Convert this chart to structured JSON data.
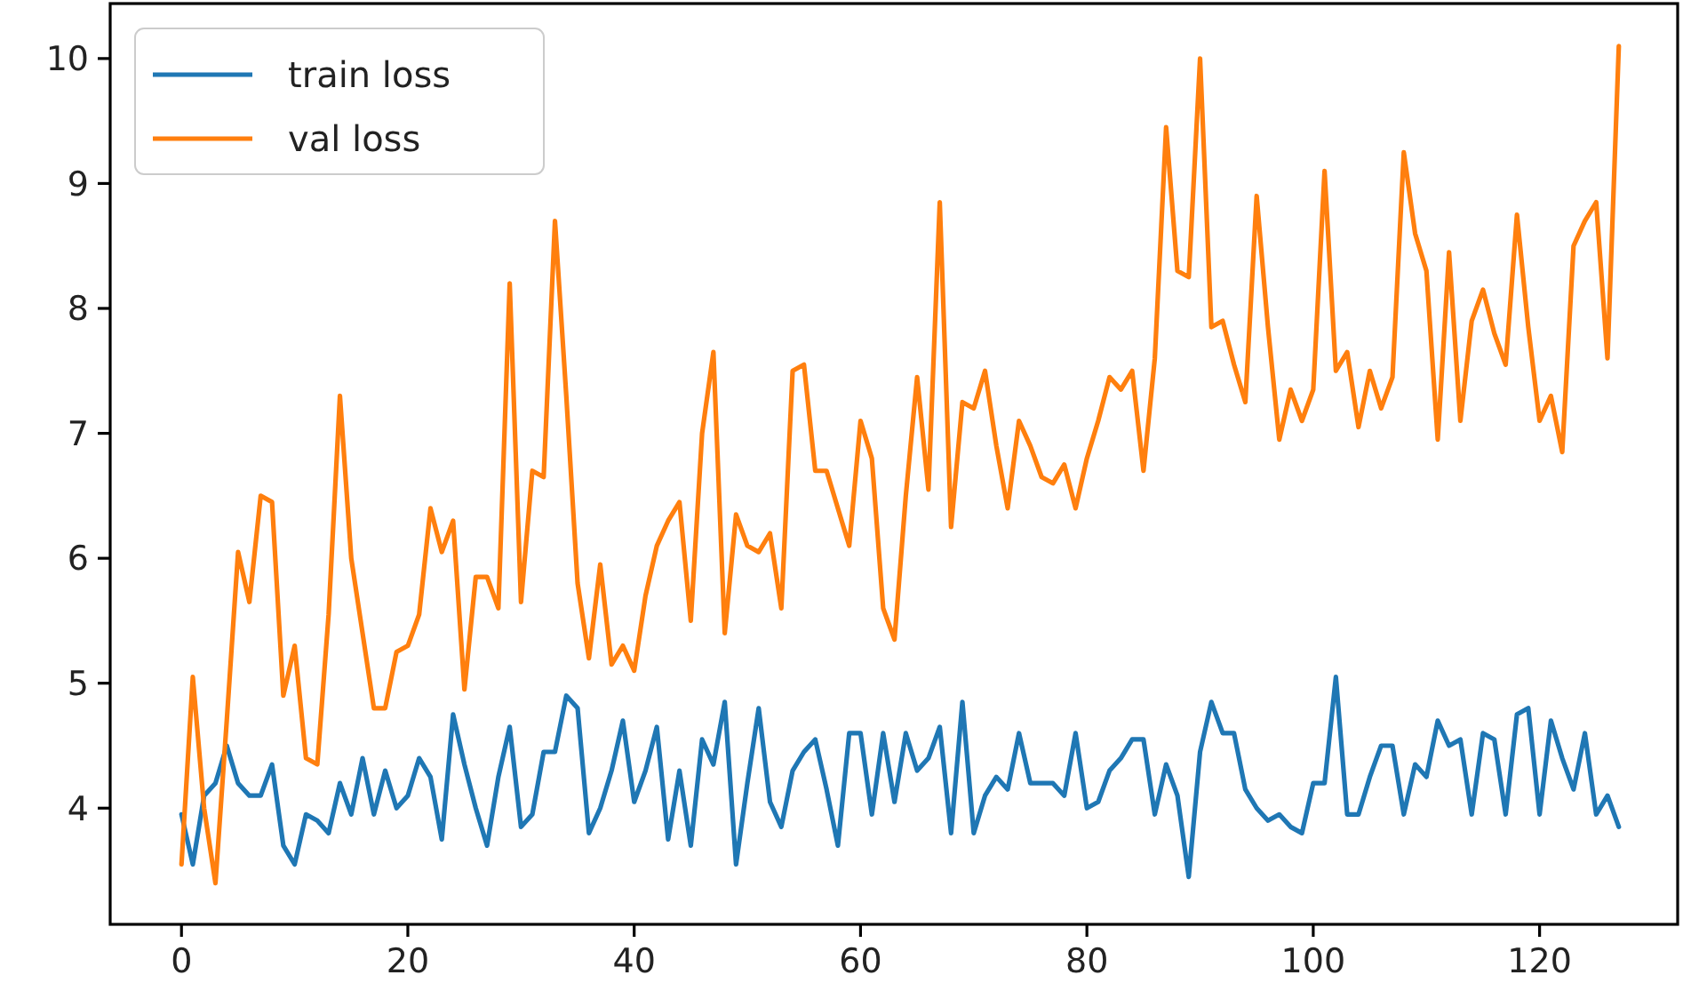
{
  "chart_data": {
    "type": "line",
    "x": [
      0,
      1,
      2,
      3,
      4,
      5,
      6,
      7,
      8,
      9,
      10,
      11,
      12,
      13,
      14,
      15,
      16,
      17,
      18,
      19,
      20,
      21,
      22,
      23,
      24,
      25,
      26,
      27,
      28,
      29,
      30,
      31,
      32,
      33,
      34,
      35,
      36,
      37,
      38,
      39,
      40,
      41,
      42,
      43,
      44,
      45,
      46,
      47,
      48,
      49,
      50,
      51,
      52,
      53,
      54,
      55,
      56,
      57,
      58,
      59,
      60,
      61,
      62,
      63,
      64,
      65,
      66,
      67,
      68,
      69,
      70,
      71,
      72,
      73,
      74,
      75,
      76,
      77,
      78,
      79,
      80,
      81,
      82,
      83,
      84,
      85,
      86,
      87,
      88,
      89,
      90,
      91,
      92,
      93,
      94,
      95,
      96,
      97,
      98,
      99,
      100,
      101,
      102,
      103,
      104,
      105,
      106,
      107,
      108,
      109,
      110,
      111,
      112,
      113,
      114,
      115,
      116,
      117,
      118,
      119,
      120,
      121,
      122,
      123,
      124,
      125,
      126,
      127
    ],
    "series": [
      {
        "name": "train loss",
        "color": "#1f77b4",
        "values": [
          3.95,
          3.55,
          4.1,
          4.2,
          4.5,
          4.2,
          4.1,
          4.1,
          4.35,
          3.7,
          3.55,
          3.95,
          3.9,
          3.8,
          4.2,
          3.95,
          4.4,
          3.95,
          4.3,
          4.0,
          4.1,
          4.4,
          4.25,
          3.75,
          4.75,
          4.35,
          4.0,
          3.7,
          4.25,
          4.65,
          3.85,
          3.95,
          4.45,
          4.45,
          4.9,
          4.8,
          3.8,
          4.0,
          4.3,
          4.7,
          4.05,
          4.3,
          4.65,
          3.75,
          4.3,
          3.7,
          4.55,
          4.35,
          4.85,
          3.55,
          4.2,
          4.8,
          4.05,
          3.85,
          4.3,
          4.45,
          4.55,
          4.15,
          3.7,
          4.6,
          4.6,
          3.95,
          4.6,
          4.05,
          4.6,
          4.3,
          4.4,
          4.65,
          3.8,
          4.85,
          3.8,
          4.1,
          4.25,
          4.15,
          4.6,
          4.2,
          4.2,
          4.2,
          4.1,
          4.6,
          4.0,
          4.05,
          4.3,
          4.4,
          4.55,
          4.55,
          3.95,
          4.35,
          4.1,
          3.45,
          4.45,
          4.85,
          4.6,
          4.6,
          4.15,
          4.0,
          3.9,
          3.95,
          3.85,
          3.8,
          4.2,
          4.2,
          5.05,
          3.95,
          3.95,
          4.25,
          4.5,
          4.5,
          3.95,
          4.35,
          4.25,
          4.7,
          4.5,
          4.55,
          3.95,
          4.6,
          4.55,
          3.95,
          4.75,
          4.8,
          3.95,
          4.7,
          4.4,
          4.15,
          4.6,
          3.95,
          4.1,
          3.85
        ]
      },
      {
        "name": "val loss",
        "color": "#ff7f0e",
        "values": [
          3.55,
          5.05,
          4.0,
          3.4,
          4.7,
          6.05,
          5.65,
          6.5,
          6.45,
          4.9,
          5.3,
          4.4,
          4.35,
          5.55,
          7.3,
          6.0,
          5.4,
          4.8,
          4.8,
          5.25,
          5.3,
          5.55,
          6.4,
          6.05,
          6.3,
          4.95,
          5.85,
          5.85,
          5.6,
          8.2,
          5.65,
          6.7,
          6.65,
          8.7,
          7.3,
          5.8,
          5.2,
          5.95,
          5.15,
          5.3,
          5.1,
          5.7,
          6.1,
          6.3,
          6.45,
          5.5,
          7.0,
          7.65,
          5.4,
          6.35,
          6.1,
          6.05,
          6.2,
          5.6,
          7.5,
          7.55,
          6.7,
          6.7,
          6.4,
          6.1,
          7.1,
          6.8,
          5.6,
          5.35,
          6.5,
          7.45,
          6.55,
          8.85,
          6.25,
          7.25,
          7.2,
          7.5,
          6.9,
          6.4,
          7.1,
          6.9,
          6.65,
          6.6,
          6.75,
          6.4,
          6.8,
          7.1,
          7.45,
          7.35,
          7.5,
          6.7,
          7.6,
          9.45,
          8.3,
          8.25,
          10.0,
          7.85,
          7.9,
          7.55,
          7.25,
          8.9,
          7.85,
          6.95,
          7.35,
          7.1,
          7.35,
          9.1,
          7.5,
          7.65,
          7.05,
          7.5,
          7.2,
          7.45,
          9.25,
          8.6,
          8.3,
          6.95,
          8.45,
          7.1,
          7.9,
          8.15,
          7.8,
          7.55,
          8.75,
          7.85,
          7.1,
          7.3,
          6.85,
          8.5,
          8.7,
          8.85,
          7.6,
          10.1
        ]
      }
    ],
    "xlim": [
      -6.3,
      132.2
    ],
    "ylim": [
      3.07,
      10.44
    ],
    "xticks": [
      0,
      20,
      40,
      60,
      80,
      100,
      120
    ],
    "yticks": [
      4,
      5,
      6,
      7,
      8,
      9,
      10
    ],
    "legend": "top left",
    "grid": false
  }
}
